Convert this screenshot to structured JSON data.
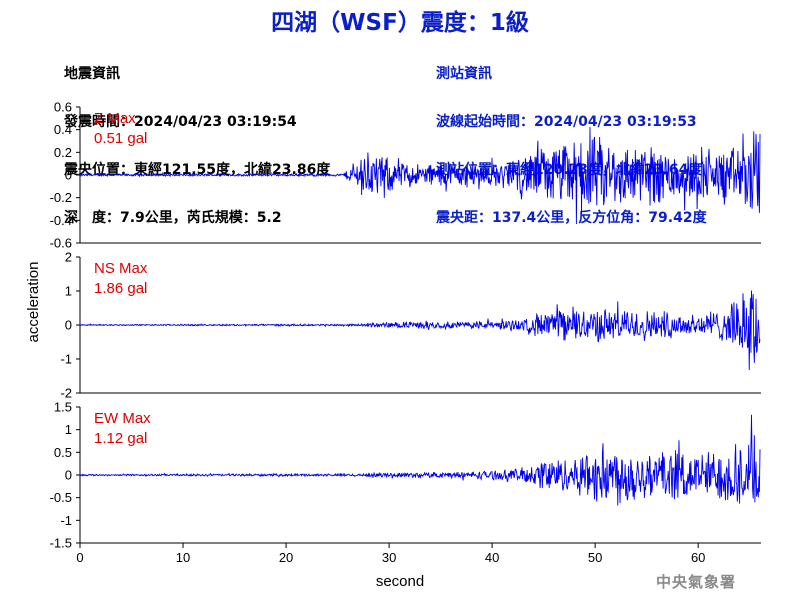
{
  "header": {
    "title": "四湖（WSF）震度：1級",
    "quake_info": [
      "地震資訊",
      "發震時間：2024/04/23 03:19:54",
      "震央位置：東經121.55度，北緯23.86度",
      "深　度：7.9公里，芮氏規模：5.2"
    ],
    "station_info": [
      "測站資訊",
      "波線起始時間：2024/04/23 03:19:53",
      "測站位置：東經120.23度，北緯23.64度",
      "震央距：137.4公里，反方位角：79.42度"
    ]
  },
  "footer": {
    "agency": "中央氣象署"
  },
  "chart_data": {
    "type": "line",
    "xlabel": "second",
    "ylabel": "acceleration",
    "xlim": [
      0,
      66
    ],
    "xticks": [
      0,
      10,
      20,
      30,
      40,
      50,
      60
    ],
    "grid": false,
    "line_color": "#0000ee",
    "label_color": "#e00000",
    "panels": [
      {
        "name": "Z",
        "max_label": "Z Max",
        "max_value": "0.51 gal",
        "ylim": [
          -0.6,
          0.6
        ],
        "yticks": [
          "0.6",
          "0.4",
          "0.2",
          "0",
          "-0.2",
          "-0.4",
          "-0.6"
        ],
        "envelope": [
          [
            0,
            0.01
          ],
          [
            25.5,
            0.012
          ],
          [
            26.5,
            0.1
          ],
          [
            27.5,
            0.22
          ],
          [
            29,
            0.2
          ],
          [
            31,
            0.13
          ],
          [
            33,
            0.11
          ],
          [
            36,
            0.12
          ],
          [
            40,
            0.11
          ],
          [
            42,
            0.15
          ],
          [
            45,
            0.28
          ],
          [
            47,
            0.3
          ],
          [
            50,
            0.38
          ],
          [
            52,
            0.32
          ],
          [
            55,
            0.3
          ],
          [
            58,
            0.25
          ],
          [
            62,
            0.22
          ],
          [
            64,
            0.3
          ],
          [
            66,
            0.48
          ]
        ]
      },
      {
        "name": "NS",
        "max_label": "NS Max",
        "max_value": "1.86 gal",
        "ylim": [
          -2,
          2
        ],
        "yticks": [
          "2",
          "1",
          "0",
          "-1",
          "-2"
        ],
        "envelope": [
          [
            0,
            0.02
          ],
          [
            27,
            0.03
          ],
          [
            29,
            0.08
          ],
          [
            32,
            0.1
          ],
          [
            36,
            0.12
          ],
          [
            40,
            0.14
          ],
          [
            43,
            0.18
          ],
          [
            45,
            0.45
          ],
          [
            47,
            0.5
          ],
          [
            50,
            0.55
          ],
          [
            53,
            0.5
          ],
          [
            56,
            0.48
          ],
          [
            58,
            0.4
          ],
          [
            61,
            0.38
          ],
          [
            63,
            0.6
          ],
          [
            64.5,
            1.1
          ],
          [
            65.5,
            1.6
          ],
          [
            66,
            1.2
          ]
        ]
      },
      {
        "name": "EW",
        "max_label": "EW Max",
        "max_value": "1.12 gal",
        "ylim": [
          -1.5,
          1.5
        ],
        "yticks": [
          "1.5",
          "1",
          "0.5",
          "0",
          "-0.5",
          "-1",
          "-1.5"
        ],
        "envelope": [
          [
            0,
            0.02
          ],
          [
            27,
            0.03
          ],
          [
            29,
            0.05
          ],
          [
            33,
            0.06
          ],
          [
            37,
            0.08
          ],
          [
            41,
            0.12
          ],
          [
            44,
            0.22
          ],
          [
            45,
            0.45
          ],
          [
            47,
            0.4
          ],
          [
            49,
            0.55
          ],
          [
            51,
            0.8
          ],
          [
            53,
            0.7
          ],
          [
            55,
            0.6
          ],
          [
            57,
            0.6
          ],
          [
            60,
            0.55
          ],
          [
            63,
            0.7
          ],
          [
            65,
            0.95
          ],
          [
            66,
            0.8
          ]
        ]
      }
    ]
  }
}
